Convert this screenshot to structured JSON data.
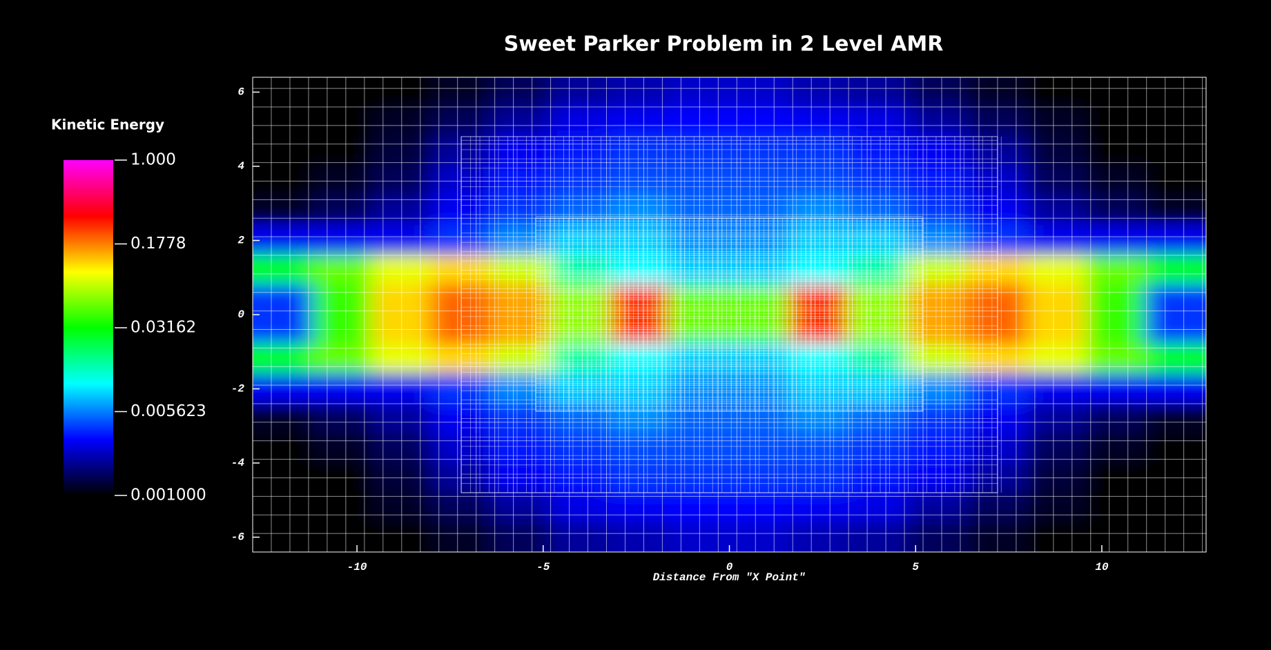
{
  "chart_data": {
    "type": "heatmap",
    "title": "Sweet Parker Problem in 2 Level AMR",
    "x_label": "Distance From \"X Point\"",
    "colorbar_title": "Kinetic Energy",
    "xlim": [
      -12.8,
      12.8
    ],
    "ylim": [
      -6.4,
      6.4
    ],
    "xticks": [
      -10,
      -5,
      0,
      5,
      10
    ],
    "yticks": [
      -6,
      -4,
      -2,
      0,
      2,
      4,
      6
    ],
    "zlim": [
      0.001,
      1
    ],
    "zscale": "log",
    "zticks": [
      {
        "value": 1,
        "label": "1.000"
      },
      0.1778,
      0.03162,
      0.005623,
      {
        "value": 0.001,
        "label": "0.001000"
      }
    ],
    "colormap": [
      "#000000",
      "#0000ff",
      "#00ffff",
      "#00ff00",
      "#ffff00",
      "#ff0000",
      "#ff00ff"
    ],
    "amr_patches": [
      {
        "xlim": [
          -12.8,
          12.8
        ],
        "ylim": [
          -6.4,
          6.4
        ],
        "spacing": 0.5
      },
      {
        "xlim": [
          -7.2,
          7.2
        ],
        "ylim": [
          -4.8,
          4.8
        ],
        "spacing": 0.25
      },
      {
        "xlim": [
          -5.2,
          5.2
        ],
        "ylim": [
          -2.6,
          2.6
        ],
        "spacing": 0.125
      }
    ],
    "x": [
      -12,
      -10.4,
      -8.8,
      -7.2,
      -5.6,
      -4,
      -2.4,
      -0.8,
      0.8,
      2.4,
      4,
      5.6,
      7.2,
      8.8,
      10.4,
      12
    ],
    "y": [
      6,
      5.2,
      4.4,
      3.6,
      2.8,
      2,
      1.2,
      0.4,
      -0.4,
      -1.2,
      -2,
      -2.8,
      -3.6,
      -4.4,
      -5.2,
      -6
    ],
    "z": [
      [
        0.001,
        0.001,
        0.001,
        0.0012,
        0.0015,
        0.002,
        0.0022,
        0.0025,
        0.0025,
        0.0022,
        0.002,
        0.0015,
        0.0012,
        0.001,
        0.001,
        0.001
      ],
      [
        0.001,
        0.001,
        0.0012,
        0.0015,
        0.002,
        0.0028,
        0.003,
        0.0032,
        0.0032,
        0.003,
        0.0028,
        0.002,
        0.0015,
        0.0012,
        0.001,
        0.001
      ],
      [
        0.001,
        0.001,
        0.0013,
        0.002,
        0.003,
        0.0035,
        0.004,
        0.004,
        0.004,
        0.004,
        0.0035,
        0.003,
        0.002,
        0.0013,
        0.001,
        0.001
      ],
      [
        0.001,
        0.0012,
        0.0015,
        0.0025,
        0.0035,
        0.004,
        0.0045,
        0.0045,
        0.0045,
        0.0045,
        0.004,
        0.0035,
        0.0025,
        0.0015,
        0.0012,
        0.001
      ],
      [
        0.0012,
        0.0015,
        0.002,
        0.003,
        0.004,
        0.005,
        0.006,
        0.005,
        0.005,
        0.006,
        0.005,
        0.004,
        0.003,
        0.002,
        0.0015,
        0.0012
      ],
      [
        0.003,
        0.003,
        0.003,
        0.004,
        0.006,
        0.008,
        0.008,
        0.006,
        0.006,
        0.008,
        0.008,
        0.006,
        0.004,
        0.003,
        0.003,
        0.003
      ],
      [
        0.03,
        0.05,
        0.09,
        0.12,
        0.08,
        0.015,
        0.01,
        0.008,
        0.008,
        0.01,
        0.015,
        0.08,
        0.12,
        0.09,
        0.05,
        0.03
      ],
      [
        0.004,
        0.04,
        0.12,
        0.2,
        0.15,
        0.06,
        0.25,
        0.05,
        0.05,
        0.25,
        0.06,
        0.15,
        0.2,
        0.12,
        0.04,
        0.004
      ],
      [
        0.004,
        0.04,
        0.12,
        0.2,
        0.15,
        0.06,
        0.25,
        0.05,
        0.05,
        0.25,
        0.06,
        0.15,
        0.2,
        0.12,
        0.04,
        0.004
      ],
      [
        0.03,
        0.05,
        0.09,
        0.12,
        0.08,
        0.015,
        0.01,
        0.008,
        0.008,
        0.01,
        0.015,
        0.08,
        0.12,
        0.09,
        0.05,
        0.03
      ],
      [
        0.003,
        0.003,
        0.003,
        0.004,
        0.006,
        0.008,
        0.008,
        0.006,
        0.006,
        0.008,
        0.008,
        0.006,
        0.004,
        0.003,
        0.003,
        0.003
      ],
      [
        0.0012,
        0.0015,
        0.002,
        0.003,
        0.004,
        0.005,
        0.006,
        0.005,
        0.005,
        0.006,
        0.005,
        0.004,
        0.003,
        0.002,
        0.0015,
        0.0012
      ],
      [
        0.001,
        0.0012,
        0.0015,
        0.0025,
        0.0035,
        0.004,
        0.0045,
        0.0045,
        0.0045,
        0.0045,
        0.004,
        0.0035,
        0.0025,
        0.0015,
        0.0012,
        0.001
      ],
      [
        0.001,
        0.001,
        0.0013,
        0.002,
        0.003,
        0.0035,
        0.004,
        0.004,
        0.004,
        0.004,
        0.0035,
        0.003,
        0.002,
        0.0013,
        0.001,
        0.001
      ],
      [
        0.001,
        0.001,
        0.0012,
        0.0015,
        0.002,
        0.0028,
        0.003,
        0.0032,
        0.0032,
        0.003,
        0.0028,
        0.002,
        0.0015,
        0.0012,
        0.001,
        0.001
      ],
      [
        0.001,
        0.001,
        0.001,
        0.0012,
        0.0015,
        0.002,
        0.0022,
        0.0025,
        0.0025,
        0.0022,
        0.002,
        0.0015,
        0.0012,
        0.001,
        0.001,
        0.001
      ]
    ]
  }
}
